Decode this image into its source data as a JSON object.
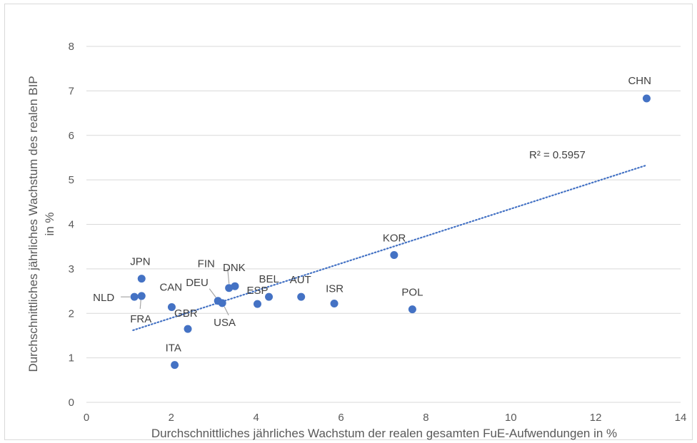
{
  "chart_data": {
    "type": "scatter",
    "title": "",
    "xlabel": "Durchschnittliches jährliches Wachstum der realen gesamten FuE-Aufwendungen in %",
    "ylabel": "Durchschnittliches jährliches Wachstum des realen BIP in %",
    "xlim": [
      0,
      14
    ],
    "ylim": [
      0,
      8
    ],
    "xticks": [
      "0",
      "2",
      "4",
      "6",
      "8",
      "10",
      "12",
      "14"
    ],
    "yticks": [
      "0",
      "1",
      "2",
      "3",
      "4",
      "5",
      "6",
      "7",
      "8"
    ],
    "grid": "horizontal",
    "point_color": "#4472c4",
    "trendline": {
      "type": "linear",
      "style": "dotted",
      "color": "#4472c4",
      "x_range": [
        1.1,
        13.2
      ],
      "y_range": [
        1.62,
        5.33
      ],
      "r2_label": "R² = 0.5957"
    },
    "points": [
      {
        "label": "CHN",
        "x": 13.2,
        "y": 6.83
      },
      {
        "label": "KOR",
        "x": 7.25,
        "y": 3.31
      },
      {
        "label": "POL",
        "x": 7.68,
        "y": 2.09
      },
      {
        "label": "ISR",
        "x": 5.84,
        "y": 2.22
      },
      {
        "label": "AUT",
        "x": 5.06,
        "y": 2.37
      },
      {
        "label": "BEL",
        "x": 4.3,
        "y": 2.37
      },
      {
        "label": "ESP",
        "x": 4.03,
        "y": 2.21
      },
      {
        "label": "DNK",
        "x": 3.5,
        "y": 2.61
      },
      {
        "label": "FIN",
        "x": 3.36,
        "y": 2.57
      },
      {
        "label": "DEU",
        "x": 3.1,
        "y": 2.28
      },
      {
        "label": "USA",
        "x": 3.2,
        "y": 2.23
      },
      {
        "label": "CAN",
        "x": 2.01,
        "y": 2.14
      },
      {
        "label": "GBR",
        "x": 2.39,
        "y": 1.65
      },
      {
        "label": "ITA",
        "x": 2.08,
        "y": 0.84
      },
      {
        "label": "JPN",
        "x": 1.3,
        "y": 2.78
      },
      {
        "label": "FRA",
        "x": 1.3,
        "y": 2.39
      },
      {
        "label": "NLD",
        "x": 1.13,
        "y": 2.37
      }
    ]
  }
}
